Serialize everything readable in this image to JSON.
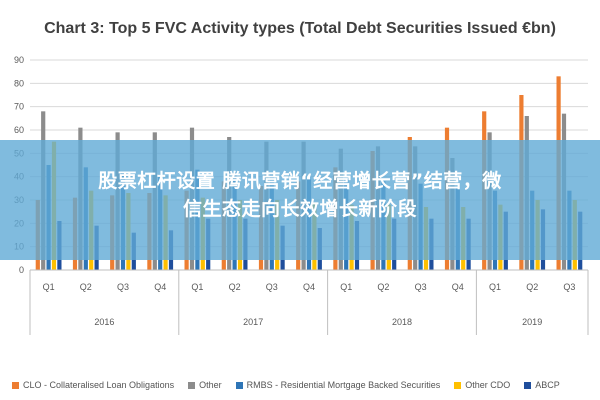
{
  "chart_data": {
    "type": "bar",
    "title": "Chart 3: Top 5 FVC Activity types (Total Debt Securities Issued €bn)",
    "ylim": [
      0,
      90
    ],
    "yticks": [
      0,
      10,
      20,
      30,
      40,
      50,
      60,
      70,
      80,
      90
    ],
    "grid": true,
    "legend_position": "bottom",
    "categories": [
      "Q1",
      "Q2",
      "Q3",
      "Q4",
      "Q1",
      "Q2",
      "Q3",
      "Q4",
      "Q1",
      "Q2",
      "Q3",
      "Q4",
      "Q1",
      "Q2",
      "Q3"
    ],
    "groups": [
      {
        "label": "2016",
        "count": 4
      },
      {
        "label": "2017",
        "count": 4
      },
      {
        "label": "2018",
        "count": 4
      },
      {
        "label": "2019",
        "count": 3
      }
    ],
    "series": [
      {
        "name": "CLO - Collateralised Loan Obligations",
        "color": "#ED7D31",
        "values": [
          30,
          31,
          32,
          33,
          34,
          38,
          36,
          38,
          44,
          51,
          57,
          61,
          68,
          75,
          83
        ]
      },
      {
        "name": "Other",
        "color": "#8C8C8C",
        "values": [
          68,
          61,
          59,
          59,
          61,
          57,
          55,
          55,
          52,
          53,
          53,
          48,
          59,
          66,
          67
        ]
      },
      {
        "name": "RMBS - Residential Mortgage Backed Securities",
        "color": "#2E75B6",
        "values": [
          45,
          44,
          42,
          41,
          43,
          42,
          41,
          40,
          39,
          38,
          37,
          35,
          34,
          34,
          34
        ]
      },
      {
        "name": "Other CDO",
        "color": "#FFC000",
        "values": [
          55,
          34,
          33,
          32,
          31,
          30,
          30,
          29,
          28,
          28,
          27,
          27,
          28,
          30,
          30
        ]
      },
      {
        "name": "ABCP",
        "color": "#1F4E9C",
        "values": [
          21,
          19,
          16,
          17,
          22,
          22,
          19,
          18,
          21,
          22,
          22,
          22,
          25,
          26,
          25
        ]
      }
    ]
  },
  "banner": {
    "line1": "股票杠杆设置 腾讯营销“经营增长营”结营，微",
    "line2": "信生态走向长效增长新阶段"
  }
}
